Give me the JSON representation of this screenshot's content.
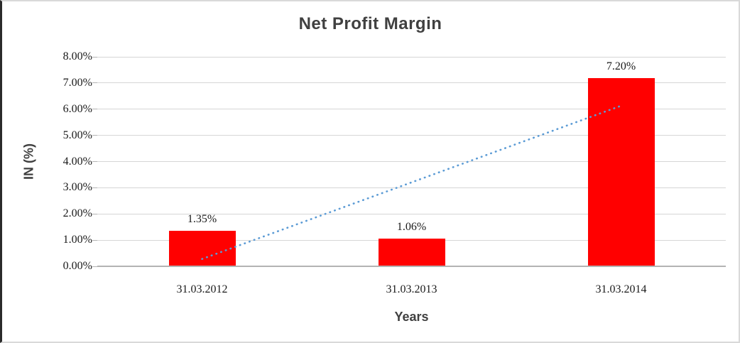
{
  "frame": {
    "background": "#ffffff",
    "outer_border_color": "#d9d9d9",
    "left_cell_border_color": "#2b2b2b"
  },
  "chart_data": {
    "type": "bar",
    "title": "Net Profit Margin",
    "xlabel": "Years",
    "ylabel": "IN (%)",
    "categories": [
      "31.03.2012",
      "31.03.2013",
      "31.03.2014"
    ],
    "values": [
      1.35,
      1.06,
      7.2
    ],
    "data_labels": [
      "1.35%",
      "1.06%",
      "7.20%"
    ],
    "ylim": [
      0,
      8
    ],
    "ytick_step": 1,
    "ytick_labels": [
      "0.00%",
      "1.00%",
      "2.00%",
      "3.00%",
      "4.00%",
      "5.00%",
      "6.00%",
      "7.00%",
      "8.00%"
    ],
    "grid": true,
    "legend": "none",
    "bar_color": "#FF0000",
    "title_color": "#404040",
    "tick_label_color": "#1a1a1a",
    "gridline_color": "#d6d6d6",
    "axis_line_color": "#b3b3b3",
    "trendline": {
      "kind": "linear",
      "style": "dotted",
      "color": "#5B9BD5",
      "y_start": 0.28,
      "y_end": 6.13
    }
  }
}
